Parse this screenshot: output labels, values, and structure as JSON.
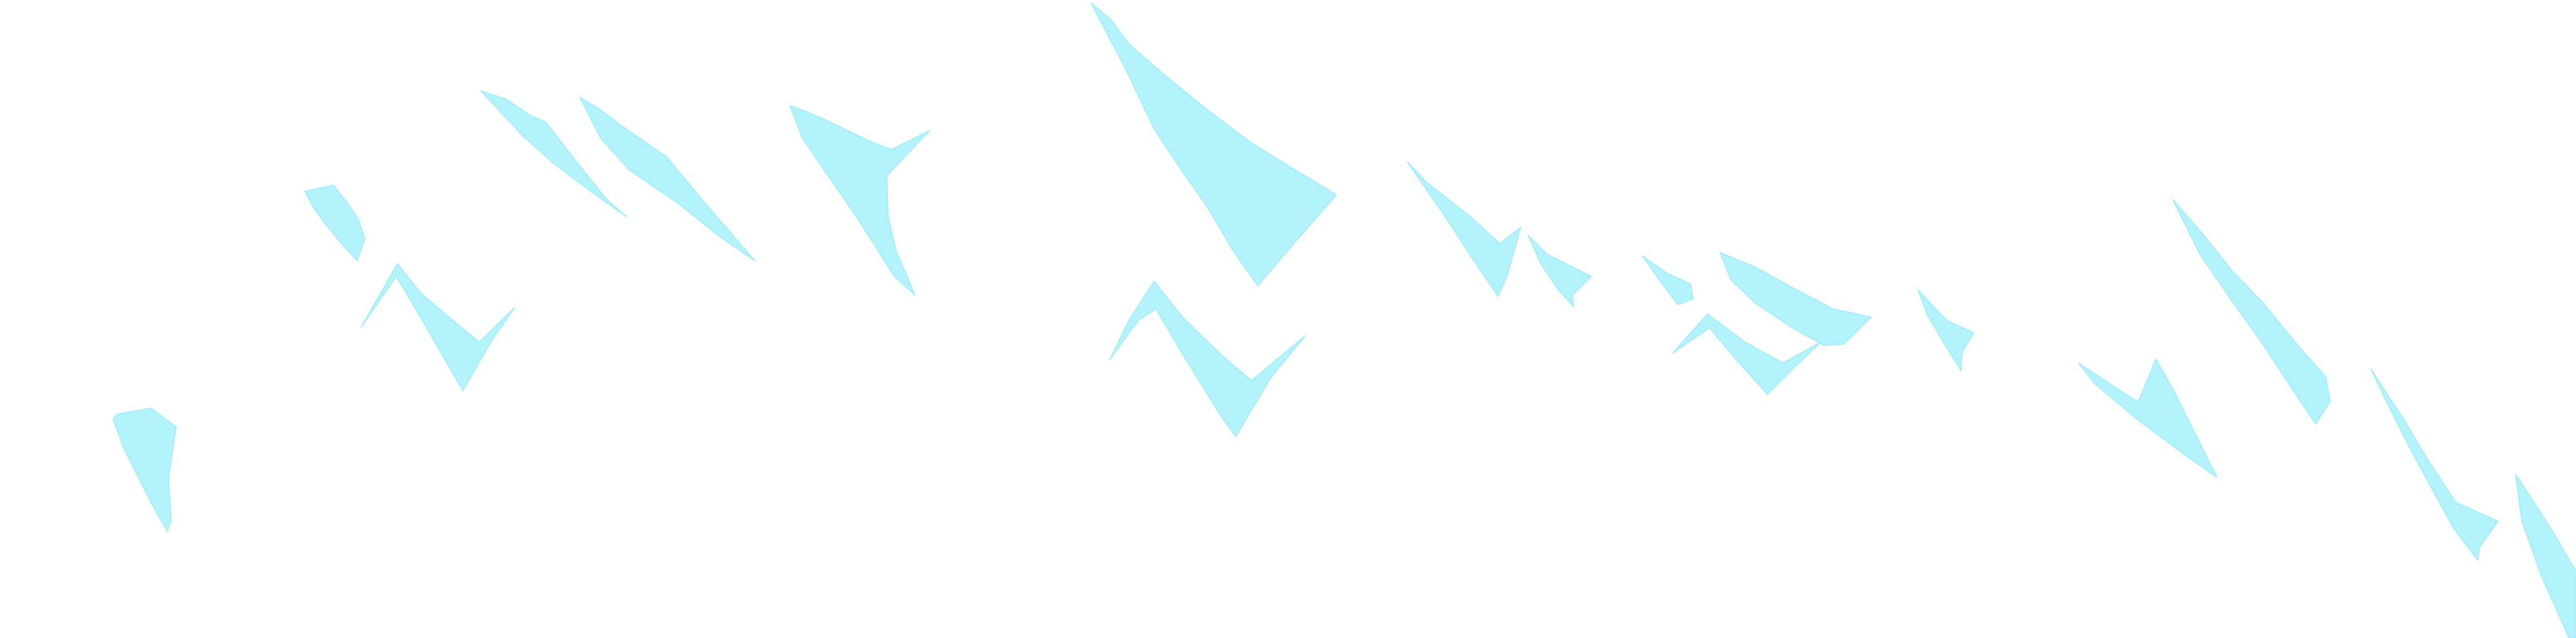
{
  "image": {
    "subject": "mountain-range-silhouette",
    "colors": {
      "background": "#ffffff",
      "mountain": "#ffffff",
      "shadow": "#b3f3fc",
      "shadow_edge": "#a8eef9"
    }
  }
}
